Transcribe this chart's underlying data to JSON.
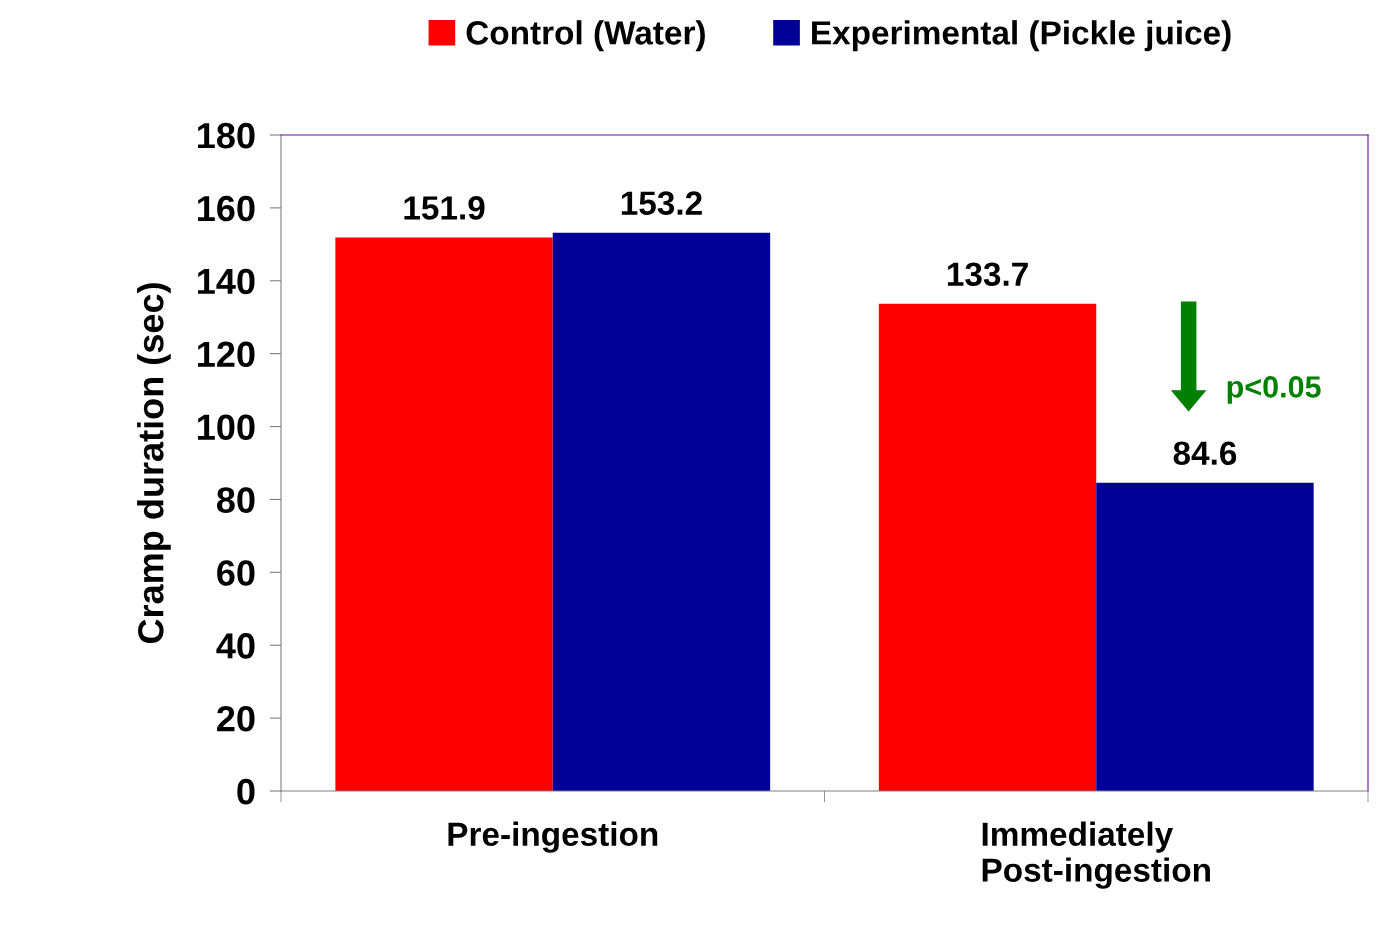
{
  "chart_data": {
    "type": "bar",
    "ylabel": "Cramp duration (sec)",
    "categories": [
      "Pre-ingestion",
      "Immediately\nPost-ingestion"
    ],
    "series": [
      {
        "name": "Control (Water)",
        "color": "#ff0000",
        "values": [
          151.9,
          133.7
        ]
      },
      {
        "name": "Experimental (Pickle juice)",
        "color": "#000099",
        "values": [
          153.2,
          84.6
        ]
      }
    ],
    "ylim": [
      0,
      180
    ],
    "yticks": [
      0,
      20,
      40,
      60,
      80,
      100,
      120,
      140,
      160,
      180
    ],
    "grid": false,
    "legend": "top",
    "data_labels": true,
    "annotations": [
      "p<0.05"
    ]
  }
}
